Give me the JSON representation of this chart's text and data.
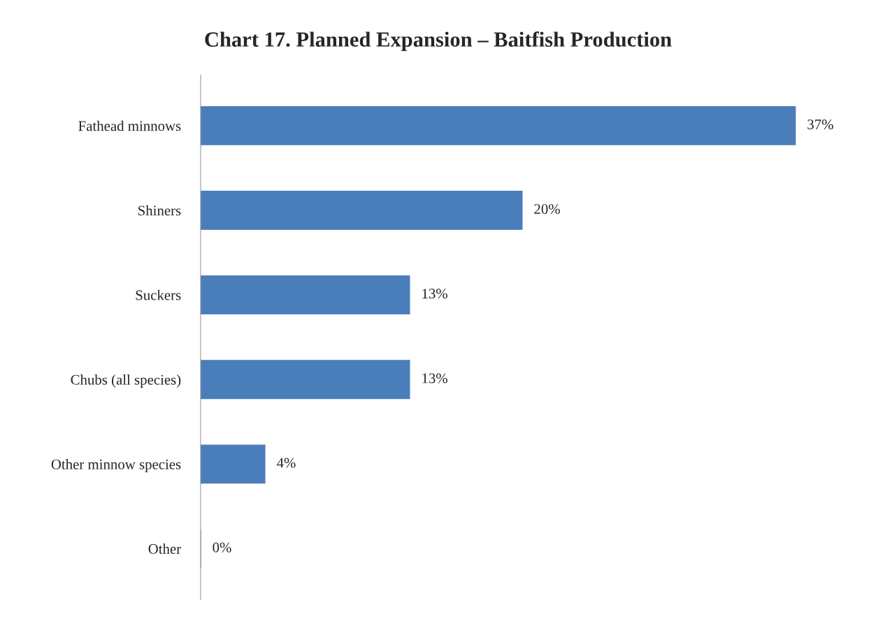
{
  "chart_data": {
    "type": "bar",
    "orientation": "horizontal",
    "title": "Chart 17. Planned Expansion – Baitfish Production",
    "categories": [
      "Fathead minnows",
      "Shiners",
      "Suckers",
      "Chubs (all species)",
      "Other minnow species",
      "Other"
    ],
    "values": [
      37,
      20,
      13,
      13,
      4,
      0
    ],
    "value_labels": [
      "37%",
      "20%",
      "13%",
      "13%",
      "4%",
      "0%"
    ],
    "color": "#4a7ebb",
    "grid": false,
    "legend": false
  }
}
